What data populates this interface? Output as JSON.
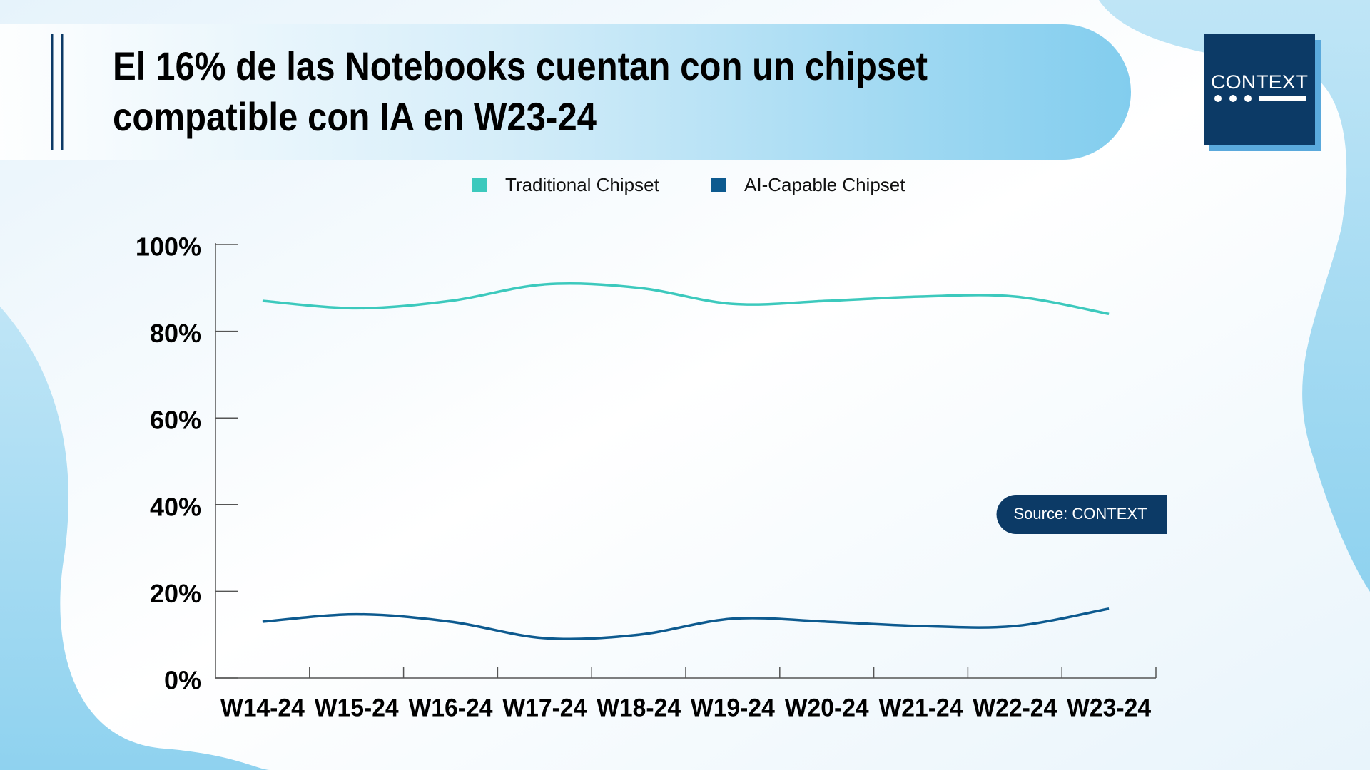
{
  "chart_data": {
    "type": "line",
    "title": [
      "El 16% de las Notebooks cuentan con un chipset",
      "compatible con IA en W23-24"
    ],
    "source": "Source: CONTEXT",
    "categories": [
      "W14-24",
      "W15-24",
      "W16-24",
      "W17-24",
      "W18-24",
      "W19-24",
      "W20-24",
      "W21-24",
      "W22-24",
      "W23-24"
    ],
    "series": [
      {
        "name": "Traditional Chipset",
        "color": "#3cc9bd",
        "values": [
          87,
          85.3,
          87,
          90.8,
          90,
          86.3,
          87,
          88,
          88,
          84
        ]
      },
      {
        "name": "AI-Capable Chipset",
        "color": "#0d5a8f",
        "values": [
          13,
          14.7,
          13,
          9.2,
          10,
          13.7,
          13,
          12,
          12,
          16
        ]
      }
    ],
    "ylim": [
      0,
      100
    ],
    "yticks": [
      {
        "value": 0,
        "label": "0%"
      },
      {
        "value": 20,
        "label": "20%"
      },
      {
        "value": 40,
        "label": "40%"
      },
      {
        "value": 60,
        "label": "60%"
      },
      {
        "value": 80,
        "label": "80%"
      },
      {
        "value": 100,
        "label": "100%"
      }
    ],
    "legend": "top"
  },
  "brand": "CONTEXT"
}
